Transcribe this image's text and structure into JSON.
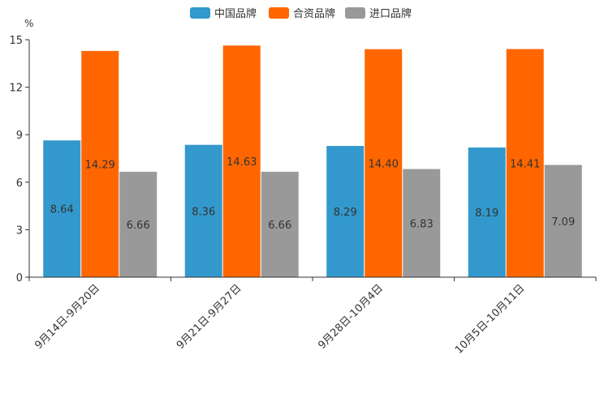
{
  "chart_data": {
    "type": "bar",
    "unit_label": "%",
    "categories": [
      "9月14日-9月20日",
      "9月21日-9月27日",
      "9月28日-10月4日",
      "10月5日-10月11日"
    ],
    "series": [
      {
        "name": "中国品牌",
        "color": "#3399cc",
        "values": [
          8.64,
          8.36,
          8.29,
          8.19
        ],
        "labels": [
          "8.64",
          "8.36",
          "8.29",
          "8.19"
        ]
      },
      {
        "name": "合资品牌",
        "color": "#ff6600",
        "values": [
          14.29,
          14.63,
          14.4,
          14.41
        ],
        "labels": [
          "14.29",
          "14.63",
          "14.40",
          "14.41"
        ]
      },
      {
        "name": "进口品牌",
        "color": "#999999",
        "values": [
          6.66,
          6.66,
          6.83,
          7.09
        ],
        "labels": [
          "6.66",
          "6.66",
          "6.83",
          "7.09"
        ]
      }
    ],
    "ylim": [
      0,
      15
    ],
    "yticks": [
      "0",
      "3",
      "6",
      "9",
      "12",
      "15"
    ],
    "legend": "top-center",
    "grid": false
  }
}
